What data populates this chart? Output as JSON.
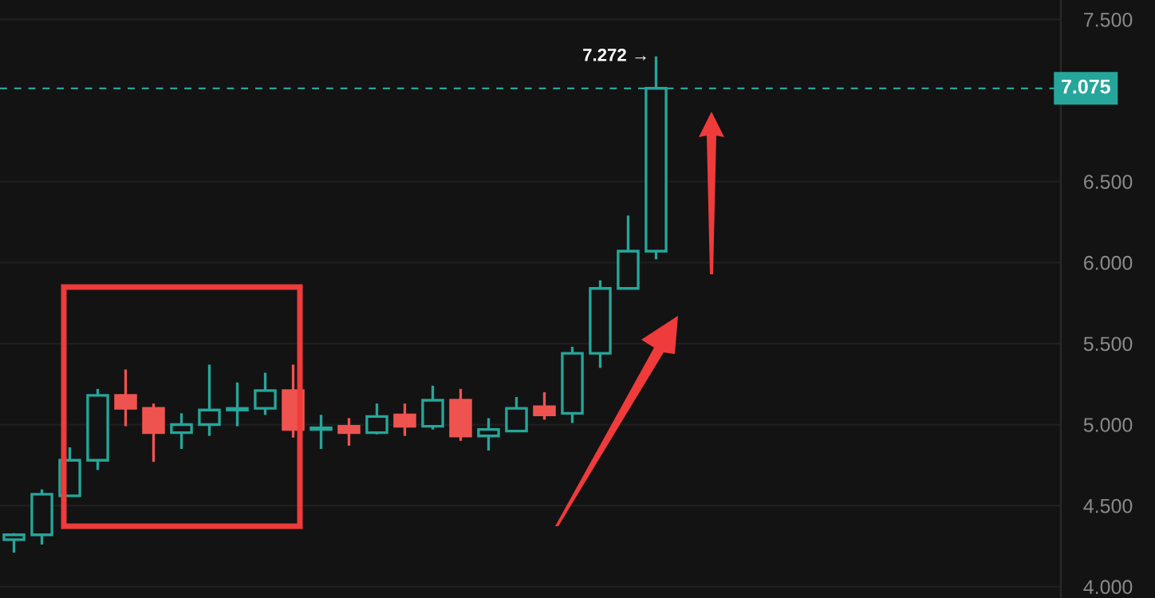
{
  "chart_data": {
    "type": "candlestick",
    "categories": [
      null,
      null,
      null,
      null,
      null,
      null,
      null,
      null,
      null,
      null,
      null,
      null,
      null,
      null,
      null,
      null,
      null,
      null,
      null,
      null,
      null,
      null,
      null,
      null,
      null,
      null,
      null,
      null,
      null,
      null,
      null,
      null,
      null,
      null,
      null,
      null,
      null,
      null
    ],
    "ohlc": [
      [
        4.29,
        4.33,
        4.21,
        4.32
      ],
      [
        4.32,
        4.6,
        4.26,
        4.57
      ],
      [
        4.56,
        4.86,
        4.56,
        4.78
      ],
      [
        4.78,
        5.22,
        4.72,
        5.18
      ],
      [
        5.18,
        5.34,
        4.99,
        5.1
      ],
      [
        5.1,
        5.13,
        4.77,
        4.95
      ],
      [
        4.95,
        5.07,
        4.85,
        5.0
      ],
      [
        5.0,
        5.37,
        4.93,
        5.09
      ],
      [
        5.09,
        5.26,
        4.99,
        5.1
      ],
      [
        5.1,
        5.32,
        5.06,
        5.21
      ],
      [
        5.21,
        5.37,
        4.92,
        4.97
      ],
      [
        4.97,
        5.06,
        4.85,
        4.98
      ],
      [
        4.99,
        5.04,
        4.87,
        4.95
      ],
      [
        4.95,
        5.13,
        4.94,
        5.05
      ],
      [
        5.06,
        5.13,
        4.93,
        4.99
      ],
      [
        4.99,
        5.24,
        4.97,
        5.15
      ],
      [
        5.15,
        5.22,
        4.9,
        4.93
      ],
      [
        4.93,
        5.04,
        4.84,
        4.97
      ],
      [
        4.96,
        5.17,
        4.96,
        5.1
      ],
      [
        5.11,
        5.2,
        5.03,
        5.06
      ],
      [
        5.07,
        5.48,
        5.01,
        5.44
      ],
      [
        5.44,
        5.89,
        5.35,
        5.84
      ],
      [
        5.84,
        6.29,
        5.84,
        6.07
      ],
      [
        6.07,
        7.272,
        6.02,
        7.075
      ],
      null,
      null,
      null,
      null,
      null,
      null,
      null,
      null,
      null,
      null,
      null,
      null,
      null,
      null
    ],
    "colors": [
      "#26a69a",
      "#26a69a",
      "#26a69a",
      "#26a69a",
      "#ef5350",
      "#ef5350",
      "#26a69a",
      "#26a69a",
      "#26a69a",
      "#26a69a",
      "#ef5350",
      "#26a69a",
      "#ef5350",
      "#26a69a",
      "#ef5350",
      "#26a69a",
      "#ef5350",
      "#26a69a",
      "#26a69a",
      "#ef5350",
      "#26a69a",
      "#26a69a",
      "#26a69a",
      "#26a69a",
      null,
      null,
      null,
      null,
      null,
      null,
      null,
      null,
      null,
      null,
      null,
      null,
      null,
      null
    ],
    "ylim": [
      3.93,
      7.62
    ],
    "yticks": [
      {
        "value": 4.0,
        "label": "4.000"
      },
      {
        "value": 4.5,
        "label": "4.500"
      },
      {
        "value": 5.0,
        "label": "5.000"
      },
      {
        "value": 5.5,
        "label": "5.500"
      },
      {
        "value": 6.0,
        "label": "6.000"
      },
      {
        "value": 6.5,
        "label": "6.500"
      },
      {
        "value": 7.5,
        "label": "7.500"
      }
    ],
    "tick_labels": "y",
    "grid": "y",
    "ref_lines": [
      {
        "axis": "y",
        "value": 7.075,
        "label": "7.075",
        "color": "#26a69a",
        "line_style": "dashed"
      }
    ],
    "annotations": [
      "7.272 →"
    ]
  }
}
